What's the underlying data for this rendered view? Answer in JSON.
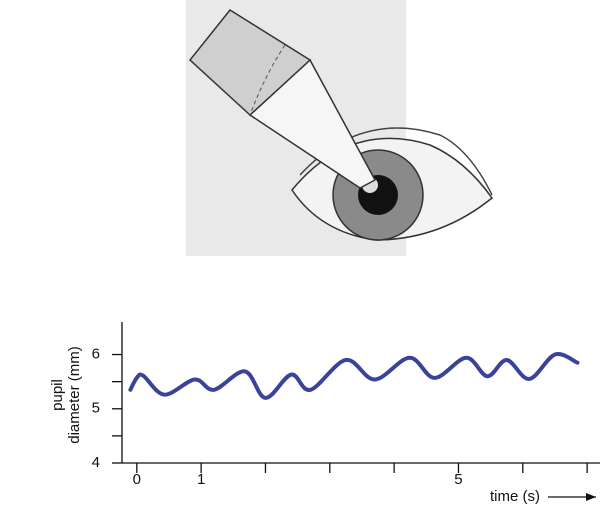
{
  "chart_data": {
    "type": "line",
    "ylabel": [
      "pupil",
      "diameter (mm)"
    ],
    "xlabel": "time (s)",
    "xlim": [
      -0.23,
      7.2
    ],
    "ylim": [
      4,
      6.6
    ],
    "xticks": [
      0,
      1,
      5
    ],
    "xminorticks": [
      2,
      3,
      4,
      6,
      7
    ],
    "yticks": [
      4,
      5,
      6
    ],
    "yminorticks": [
      4.5,
      5.5
    ],
    "series": [
      {
        "color": "#3a4399",
        "x": [
          -0.1,
          0.0,
          0.1,
          0.43,
          0.9,
          1.2,
          1.68,
          2.0,
          2.4,
          2.7,
          3.25,
          3.7,
          4.24,
          4.63,
          5.12,
          5.45,
          5.75,
          6.1,
          6.5,
          6.85
        ],
        "values": [
          5.35,
          5.57,
          5.61,
          5.26,
          5.54,
          5.35,
          5.69,
          5.2,
          5.63,
          5.35,
          5.9,
          5.54,
          5.94,
          5.57,
          5.94,
          5.6,
          5.9,
          5.55,
          6.0,
          5.85
        ]
      }
    ]
  }
}
